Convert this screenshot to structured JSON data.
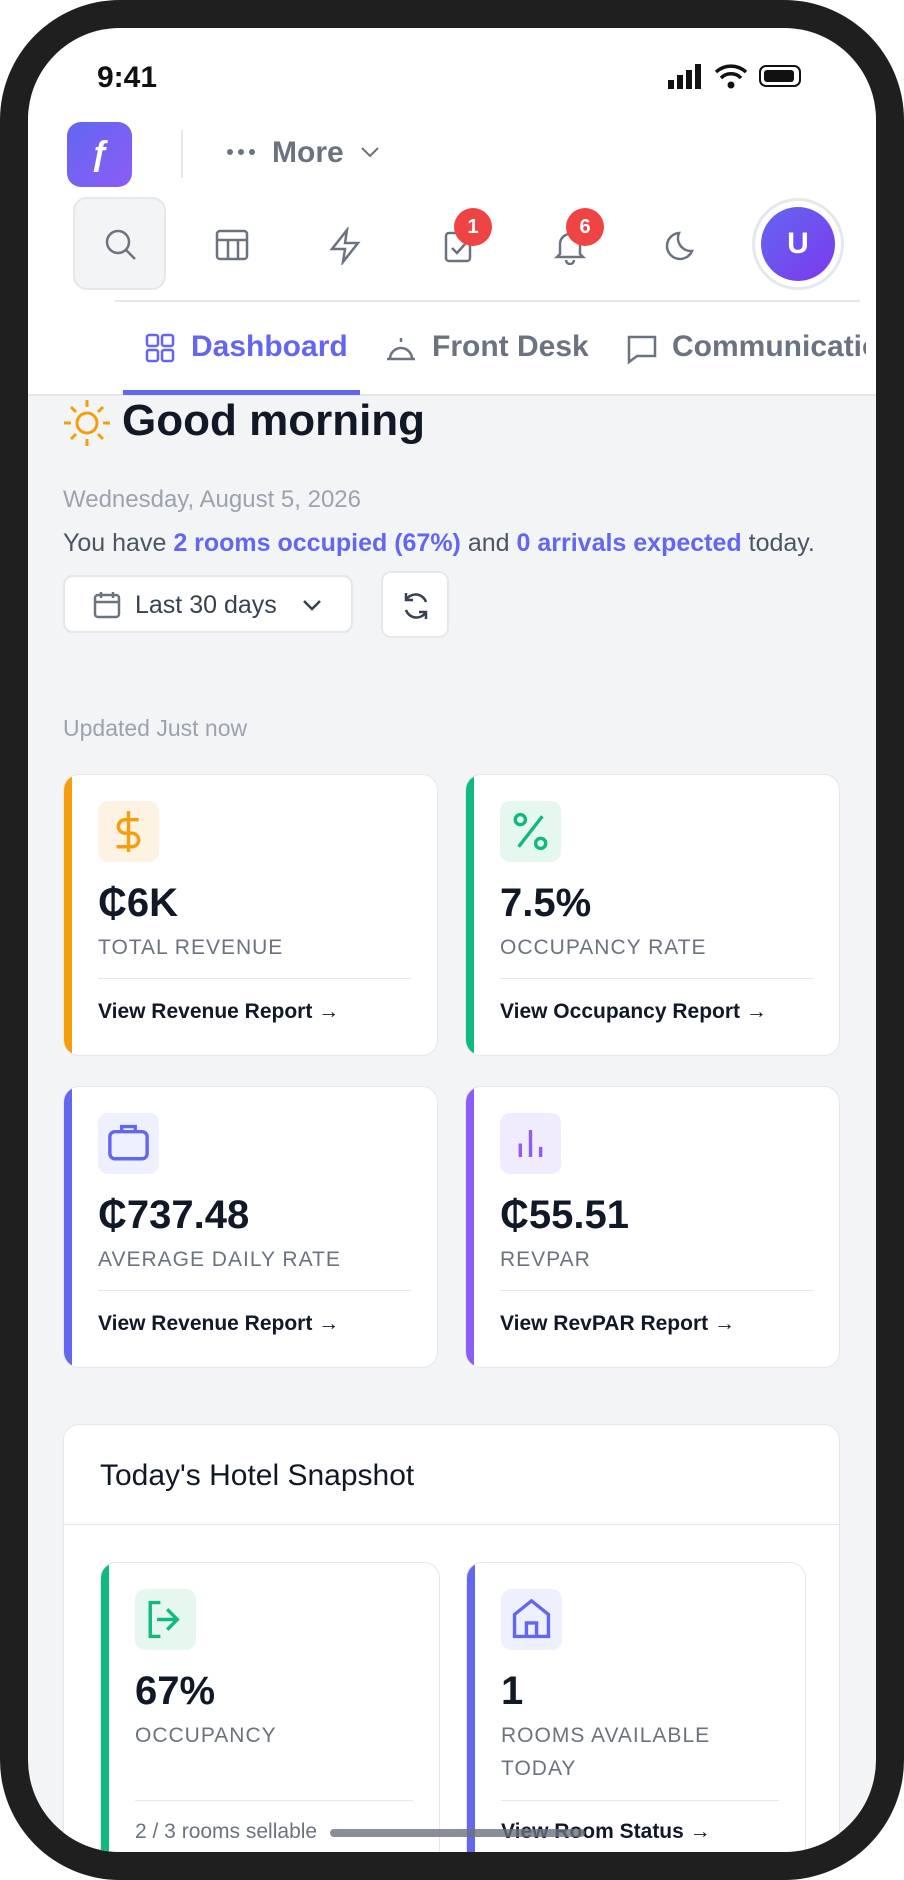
{
  "status": {
    "time": "9:41"
  },
  "topbar": {
    "more": "More",
    "badges": {
      "tasks": "1",
      "notifications": "6"
    },
    "avatar": "U"
  },
  "tabs": [
    "Dashboard",
    "Front Desk",
    "Communications"
  ],
  "greeting": {
    "title": "Good morning",
    "date": "Wednesday, August 5, 2026",
    "summary": {
      "prefix": "You have",
      "rooms": "2 rooms occupied (67%)",
      "middle": "and",
      "arrivals": "0 arrivals expected",
      "suffix": "today."
    }
  },
  "filter": {
    "range": "Last 30 days",
    "updated": "Updated Just now"
  },
  "kpis": [
    {
      "value": "₵6K",
      "label": "TOTAL REVENUE",
      "link": "View Revenue Report →"
    },
    {
      "value": "7.5%",
      "label": "OCCUPANCY RATE",
      "link": "View Occupancy Report →"
    },
    {
      "value": "₵737.48",
      "label": "AVERAGE DAILY RATE",
      "link": "View Revenue Report →"
    },
    {
      "value": "₵55.51",
      "label": "REVPAR",
      "link": "View RevPAR Report →"
    }
  ],
  "snapshot": {
    "title": "Today's Hotel Snapshot",
    "cards": [
      {
        "value": "67%",
        "label": "OCCUPANCY",
        "footer": "2 / 3 rooms sellable"
      },
      {
        "value": "1",
        "label": "ROOMS AVAILABLE TODAY",
        "footer": "View Room Status →"
      }
    ]
  }
}
